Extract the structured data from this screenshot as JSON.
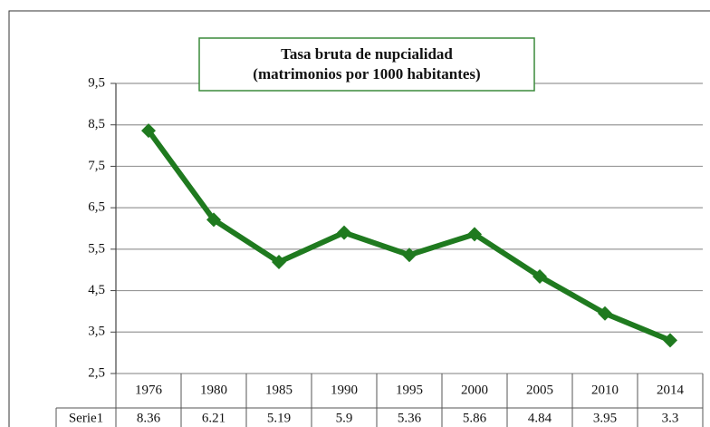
{
  "chart_data": {
    "type": "line",
    "title": [
      "Tasa bruta de nupcialidad",
      "(matrimonios por 1000 habitantes)"
    ],
    "categories": [
      "1976",
      "1980",
      "1985",
      "1990",
      "1995",
      "2000",
      "2005",
      "2010",
      "2014"
    ],
    "series": [
      {
        "name": "Serie1",
        "color": "#1f7a1f",
        "values": [
          8.36,
          6.21,
          5.19,
          5.9,
          5.36,
          5.86,
          4.84,
          3.95,
          3.3
        ]
      }
    ],
    "ylim": [
      2.5,
      9.5
    ],
    "yticks": [
      {
        "value": 2.5,
        "label": "2,5"
      },
      {
        "value": 3.5,
        "label": "3,5"
      },
      {
        "value": 4.5,
        "label": "4,5"
      },
      {
        "value": 5.5,
        "label": "5,5"
      },
      {
        "value": 6.5,
        "label": "6,5"
      },
      {
        "value": 7.5,
        "label": "7,5"
      },
      {
        "value": 8.5,
        "label": "8,5"
      },
      {
        "value": 9.5,
        "label": "9,5"
      }
    ],
    "grid": true
  }
}
